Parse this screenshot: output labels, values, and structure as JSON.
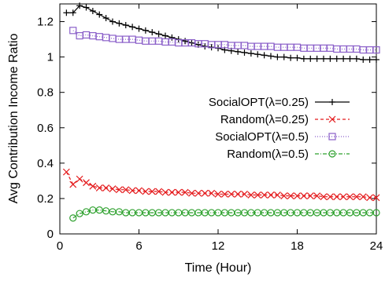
{
  "chart_data": {
    "type": "line",
    "xlabel": "Time (Hour)",
    "ylabel": "Avg Contribution Income Ratio",
    "xlim": [
      0,
      24
    ],
    "ylim": [
      0,
      1.3
    ],
    "xticks": [
      0,
      6,
      12,
      18,
      24
    ],
    "yticks": [
      0,
      0.2,
      0.4,
      0.6,
      0.8,
      1,
      1.2
    ],
    "x_tick_labels": [
      "0",
      "6",
      "12",
      "18",
      "24"
    ],
    "y_tick_labels": [
      "0",
      "0.2",
      "0.4",
      "0.6",
      "0.8",
      "1",
      "1.2"
    ],
    "grid": false,
    "legend_position": "right",
    "series": [
      {
        "name": "SocialOPT(λ=0.25)",
        "color": "#000000",
        "marker": "plus",
        "dash": "",
        "x": [
          0.5,
          1,
          1.5,
          2,
          2.5,
          3,
          3.5,
          4,
          4.5,
          5,
          5.5,
          6,
          6.5,
          7,
          7.5,
          8,
          8.5,
          9,
          9.5,
          10,
          10.5,
          11,
          11.5,
          12,
          12.5,
          13,
          13.5,
          14,
          14.5,
          15,
          15.5,
          16,
          16.5,
          17,
          17.5,
          18,
          18.5,
          19,
          19.5,
          20,
          20.5,
          21,
          21.5,
          22,
          22.5,
          23,
          23.5,
          24
        ],
        "y": [
          1.25,
          1.25,
          1.29,
          1.28,
          1.26,
          1.24,
          1.22,
          1.2,
          1.19,
          1.18,
          1.17,
          1.16,
          1.15,
          1.14,
          1.13,
          1.12,
          1.11,
          1.1,
          1.09,
          1.08,
          1.07,
          1.06,
          1.055,
          1.05,
          1.04,
          1.035,
          1.03,
          1.025,
          1.02,
          1.015,
          1.01,
          1.005,
          1.0,
          1.0,
          0.995,
          0.995,
          0.99,
          0.99,
          0.99,
          0.99,
          0.99,
          0.99,
          0.99,
          0.99,
          0.99,
          0.985,
          0.985,
          0.985
        ]
      },
      {
        "name": "Random(λ=0.25)",
        "color": "#e41a1c",
        "marker": "x",
        "dash": "4,3",
        "x": [
          0.5,
          1,
          1.5,
          2,
          2.5,
          3,
          3.5,
          4,
          4.5,
          5,
          5.5,
          6,
          6.5,
          7,
          7.5,
          8,
          8.5,
          9,
          9.5,
          10,
          10.5,
          11,
          11.5,
          12,
          12.5,
          13,
          13.5,
          14,
          14.5,
          15,
          15.5,
          16,
          16.5,
          17,
          17.5,
          18,
          18.5,
          19,
          19.5,
          20,
          20.5,
          21,
          21.5,
          22,
          22.5,
          23,
          23.5,
          24
        ],
        "y": [
          0.35,
          0.28,
          0.31,
          0.29,
          0.27,
          0.26,
          0.26,
          0.255,
          0.25,
          0.25,
          0.245,
          0.245,
          0.24,
          0.24,
          0.24,
          0.235,
          0.235,
          0.235,
          0.235,
          0.23,
          0.23,
          0.23,
          0.23,
          0.225,
          0.225,
          0.225,
          0.225,
          0.225,
          0.22,
          0.22,
          0.22,
          0.22,
          0.22,
          0.215,
          0.215,
          0.215,
          0.215,
          0.215,
          0.215,
          0.21,
          0.21,
          0.21,
          0.21,
          0.21,
          0.21,
          0.21,
          0.205,
          0.205
        ]
      },
      {
        "name": "SocialOPT(λ=0.5)",
        "color": "#8a5fc9",
        "marker": "square",
        "dash": "1,2",
        "x": [
          1,
          1.5,
          2,
          2.5,
          3,
          3.5,
          4,
          4.5,
          5,
          5.5,
          6,
          6.5,
          7,
          7.5,
          8,
          8.5,
          9,
          9.5,
          10,
          10.5,
          11,
          11.5,
          12,
          12.5,
          13,
          13.5,
          14,
          14.5,
          15,
          15.5,
          16,
          16.5,
          17,
          17.5,
          18,
          18.5,
          19,
          19.5,
          20,
          20.5,
          21,
          21.5,
          22,
          22.5,
          23,
          23.5,
          24
        ],
        "y": [
          1.15,
          1.12,
          1.125,
          1.12,
          1.115,
          1.11,
          1.105,
          1.1,
          1.1,
          1.1,
          1.095,
          1.09,
          1.09,
          1.09,
          1.085,
          1.085,
          1.08,
          1.08,
          1.08,
          1.075,
          1.075,
          1.07,
          1.07,
          1.07,
          1.065,
          1.065,
          1.065,
          1.06,
          1.06,
          1.06,
          1.06,
          1.055,
          1.055,
          1.055,
          1.055,
          1.05,
          1.05,
          1.05,
          1.05,
          1.05,
          1.045,
          1.045,
          1.045,
          1.045,
          1.04,
          1.04,
          1.04
        ]
      },
      {
        "name": "Random(λ=0.5)",
        "color": "#2ca02c",
        "marker": "circle",
        "dash": "5,2,1,2",
        "x": [
          1,
          1.5,
          2,
          2.5,
          3,
          3.5,
          4,
          4.5,
          5,
          5.5,
          6,
          6.5,
          7,
          7.5,
          8,
          8.5,
          9,
          9.5,
          10,
          10.5,
          11,
          11.5,
          12,
          12.5,
          13,
          13.5,
          14,
          14.5,
          15,
          15.5,
          16,
          16.5,
          17,
          17.5,
          18,
          18.5,
          19,
          19.5,
          20,
          20.5,
          21,
          21.5,
          22,
          22.5,
          23,
          23.5,
          24
        ],
        "y": [
          0.09,
          0.115,
          0.125,
          0.135,
          0.135,
          0.13,
          0.125,
          0.125,
          0.12,
          0.12,
          0.12,
          0.12,
          0.12,
          0.12,
          0.12,
          0.12,
          0.12,
          0.12,
          0.12,
          0.12,
          0.12,
          0.12,
          0.12,
          0.12,
          0.12,
          0.12,
          0.12,
          0.12,
          0.12,
          0.12,
          0.12,
          0.12,
          0.12,
          0.12,
          0.12,
          0.12,
          0.12,
          0.12,
          0.12,
          0.12,
          0.12,
          0.12,
          0.12,
          0.12,
          0.12,
          0.12,
          0.12
        ]
      }
    ]
  }
}
